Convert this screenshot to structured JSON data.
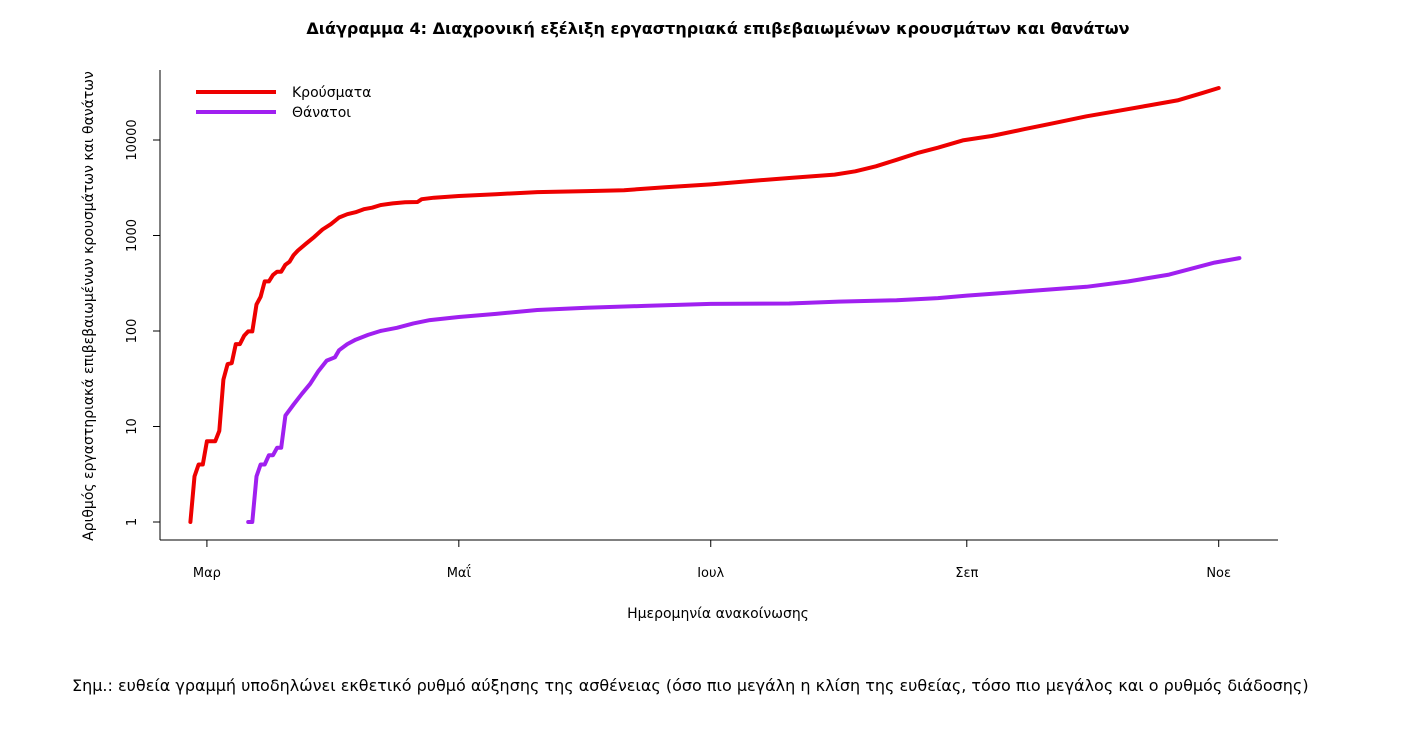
{
  "chart_data": {
    "type": "line",
    "title": "Διάγραμμα 4: Διαχρονική εξέλιξη εργαστηριακά επιβεβαιωμένων κρουσμάτων και θανάτων",
    "xlabel": "Ημερομηνία ανακοίνωσης",
    "ylabel": "Αριθμός εργαστηριακά επιβεβαιωμένων κρουσμάτων και θανάτων",
    "y_scale": "log",
    "ylim": [
      1,
      40000
    ],
    "y_ticks": [
      1,
      10,
      100,
      1000,
      10000
    ],
    "xlim": [
      "2020-02-23",
      "2020-11-11"
    ],
    "x_ticks": [
      {
        "date": "2020-03-01",
        "label": "Μαρ"
      },
      {
        "date": "2020-05-01",
        "label": "Μαΐ"
      },
      {
        "date": "2020-07-01",
        "label": "Ιουλ"
      },
      {
        "date": "2020-09-01",
        "label": "Σεπ"
      },
      {
        "date": "2020-11-01",
        "label": "Νοε"
      }
    ],
    "legend": "top-left",
    "grid": false,
    "series": [
      {
        "name": "Κρούσματα",
        "color": "#ee0000",
        "points": [
          [
            "2020-02-26",
            1
          ],
          [
            "2020-02-27",
            3
          ],
          [
            "2020-02-28",
            4
          ],
          [
            "2020-02-29",
            4
          ],
          [
            "2020-03-01",
            7
          ],
          [
            "2020-03-02",
            7
          ],
          [
            "2020-03-03",
            7
          ],
          [
            "2020-03-04",
            9
          ],
          [
            "2020-03-05",
            31
          ],
          [
            "2020-03-06",
            45
          ],
          [
            "2020-03-07",
            46
          ],
          [
            "2020-03-08",
            73
          ],
          [
            "2020-03-09",
            73
          ],
          [
            "2020-03-10",
            89
          ],
          [
            "2020-03-11",
            99
          ],
          [
            "2020-03-12",
            99
          ],
          [
            "2020-03-13",
            190
          ],
          [
            "2020-03-14",
            228
          ],
          [
            "2020-03-15",
            331
          ],
          [
            "2020-03-16",
            331
          ],
          [
            "2020-03-17",
            387
          ],
          [
            "2020-03-18",
            418
          ],
          [
            "2020-03-19",
            418
          ],
          [
            "2020-03-20",
            495
          ],
          [
            "2020-03-21",
            530
          ],
          [
            "2020-03-22",
            624
          ],
          [
            "2020-03-23",
            695
          ],
          [
            "2020-03-25",
            821
          ],
          [
            "2020-03-27",
            966
          ],
          [
            "2020-03-29",
            1156
          ],
          [
            "2020-03-31",
            1314
          ],
          [
            "2020-04-02",
            1544
          ],
          [
            "2020-04-04",
            1673
          ],
          [
            "2020-04-06",
            1755
          ],
          [
            "2020-04-08",
            1884
          ],
          [
            "2020-04-10",
            1955
          ],
          [
            "2020-04-12",
            2081
          ],
          [
            "2020-04-15",
            2170
          ],
          [
            "2020-04-18",
            2224
          ],
          [
            "2020-04-21",
            2245
          ],
          [
            "2020-04-22",
            2401
          ],
          [
            "2020-04-25",
            2490
          ],
          [
            "2020-05-01",
            2591
          ],
          [
            "2020-05-10",
            2710
          ],
          [
            "2020-05-20",
            2850
          ],
          [
            "2020-06-01",
            2920
          ],
          [
            "2020-06-10",
            2980
          ],
          [
            "2020-06-20",
            3200
          ],
          [
            "2020-07-01",
            3430
          ],
          [
            "2020-07-10",
            3700
          ],
          [
            "2020-07-20",
            4000
          ],
          [
            "2020-07-31",
            4340
          ],
          [
            "2020-08-05",
            4700
          ],
          [
            "2020-08-10",
            5300
          ],
          [
            "2020-08-15",
            6200
          ],
          [
            "2020-08-20",
            7300
          ],
          [
            "2020-08-25",
            8300
          ],
          [
            "2020-08-31",
            9900
          ],
          [
            "2020-09-07",
            11000
          ],
          [
            "2020-09-15",
            13000
          ],
          [
            "2020-09-22",
            15000
          ],
          [
            "2020-09-30",
            17700
          ],
          [
            "2020-10-07",
            20000
          ],
          [
            "2020-10-15",
            23000
          ],
          [
            "2020-10-22",
            26000
          ],
          [
            "2020-10-28",
            31000
          ],
          [
            "2020-11-01",
            35000
          ]
        ]
      },
      {
        "name": "Θάνατοι",
        "color": "#a020f0",
        "points": [
          [
            "2020-03-11",
            1
          ],
          [
            "2020-03-12",
            1
          ],
          [
            "2020-03-13",
            3
          ],
          [
            "2020-03-14",
            4
          ],
          [
            "2020-03-15",
            4
          ],
          [
            "2020-03-16",
            5
          ],
          [
            "2020-03-17",
            5
          ],
          [
            "2020-03-18",
            6
          ],
          [
            "2020-03-19",
            6
          ],
          [
            "2020-03-20",
            13
          ],
          [
            "2020-03-22",
            17
          ],
          [
            "2020-03-24",
            22
          ],
          [
            "2020-03-26",
            28
          ],
          [
            "2020-03-28",
            38
          ],
          [
            "2020-03-30",
            49
          ],
          [
            "2020-04-01",
            53
          ],
          [
            "2020-04-02",
            63
          ],
          [
            "2020-04-04",
            73
          ],
          [
            "2020-04-06",
            81
          ],
          [
            "2020-04-09",
            91
          ],
          [
            "2020-04-12",
            100
          ],
          [
            "2020-04-16",
            108
          ],
          [
            "2020-04-20",
            120
          ],
          [
            "2020-04-24",
            130
          ],
          [
            "2020-05-01",
            140
          ],
          [
            "2020-05-10",
            151
          ],
          [
            "2020-05-20",
            166
          ],
          [
            "2020-06-01",
            175
          ],
          [
            "2020-06-15",
            183
          ],
          [
            "2020-07-01",
            192
          ],
          [
            "2020-07-20",
            194
          ],
          [
            "2020-08-01",
            203
          ],
          [
            "2020-08-15",
            210
          ],
          [
            "2020-08-25",
            221
          ],
          [
            "2020-09-01",
            235
          ],
          [
            "2020-09-15",
            260
          ],
          [
            "2020-09-30",
            290
          ],
          [
            "2020-10-10",
            330
          ],
          [
            "2020-10-20",
            390
          ],
          [
            "2020-10-31",
            520
          ],
          [
            "2020-11-06",
            580
          ]
        ]
      }
    ]
  },
  "note": "Σημ.: ευθεία γραμμή υποδηλώνει εκθετικό ρυθμό αύξησης της ασθένειας (όσο πιο μεγάλη η κλίση της ευθείας, τόσο πιο μεγάλος και ο ρυθμός διάδοσης)"
}
